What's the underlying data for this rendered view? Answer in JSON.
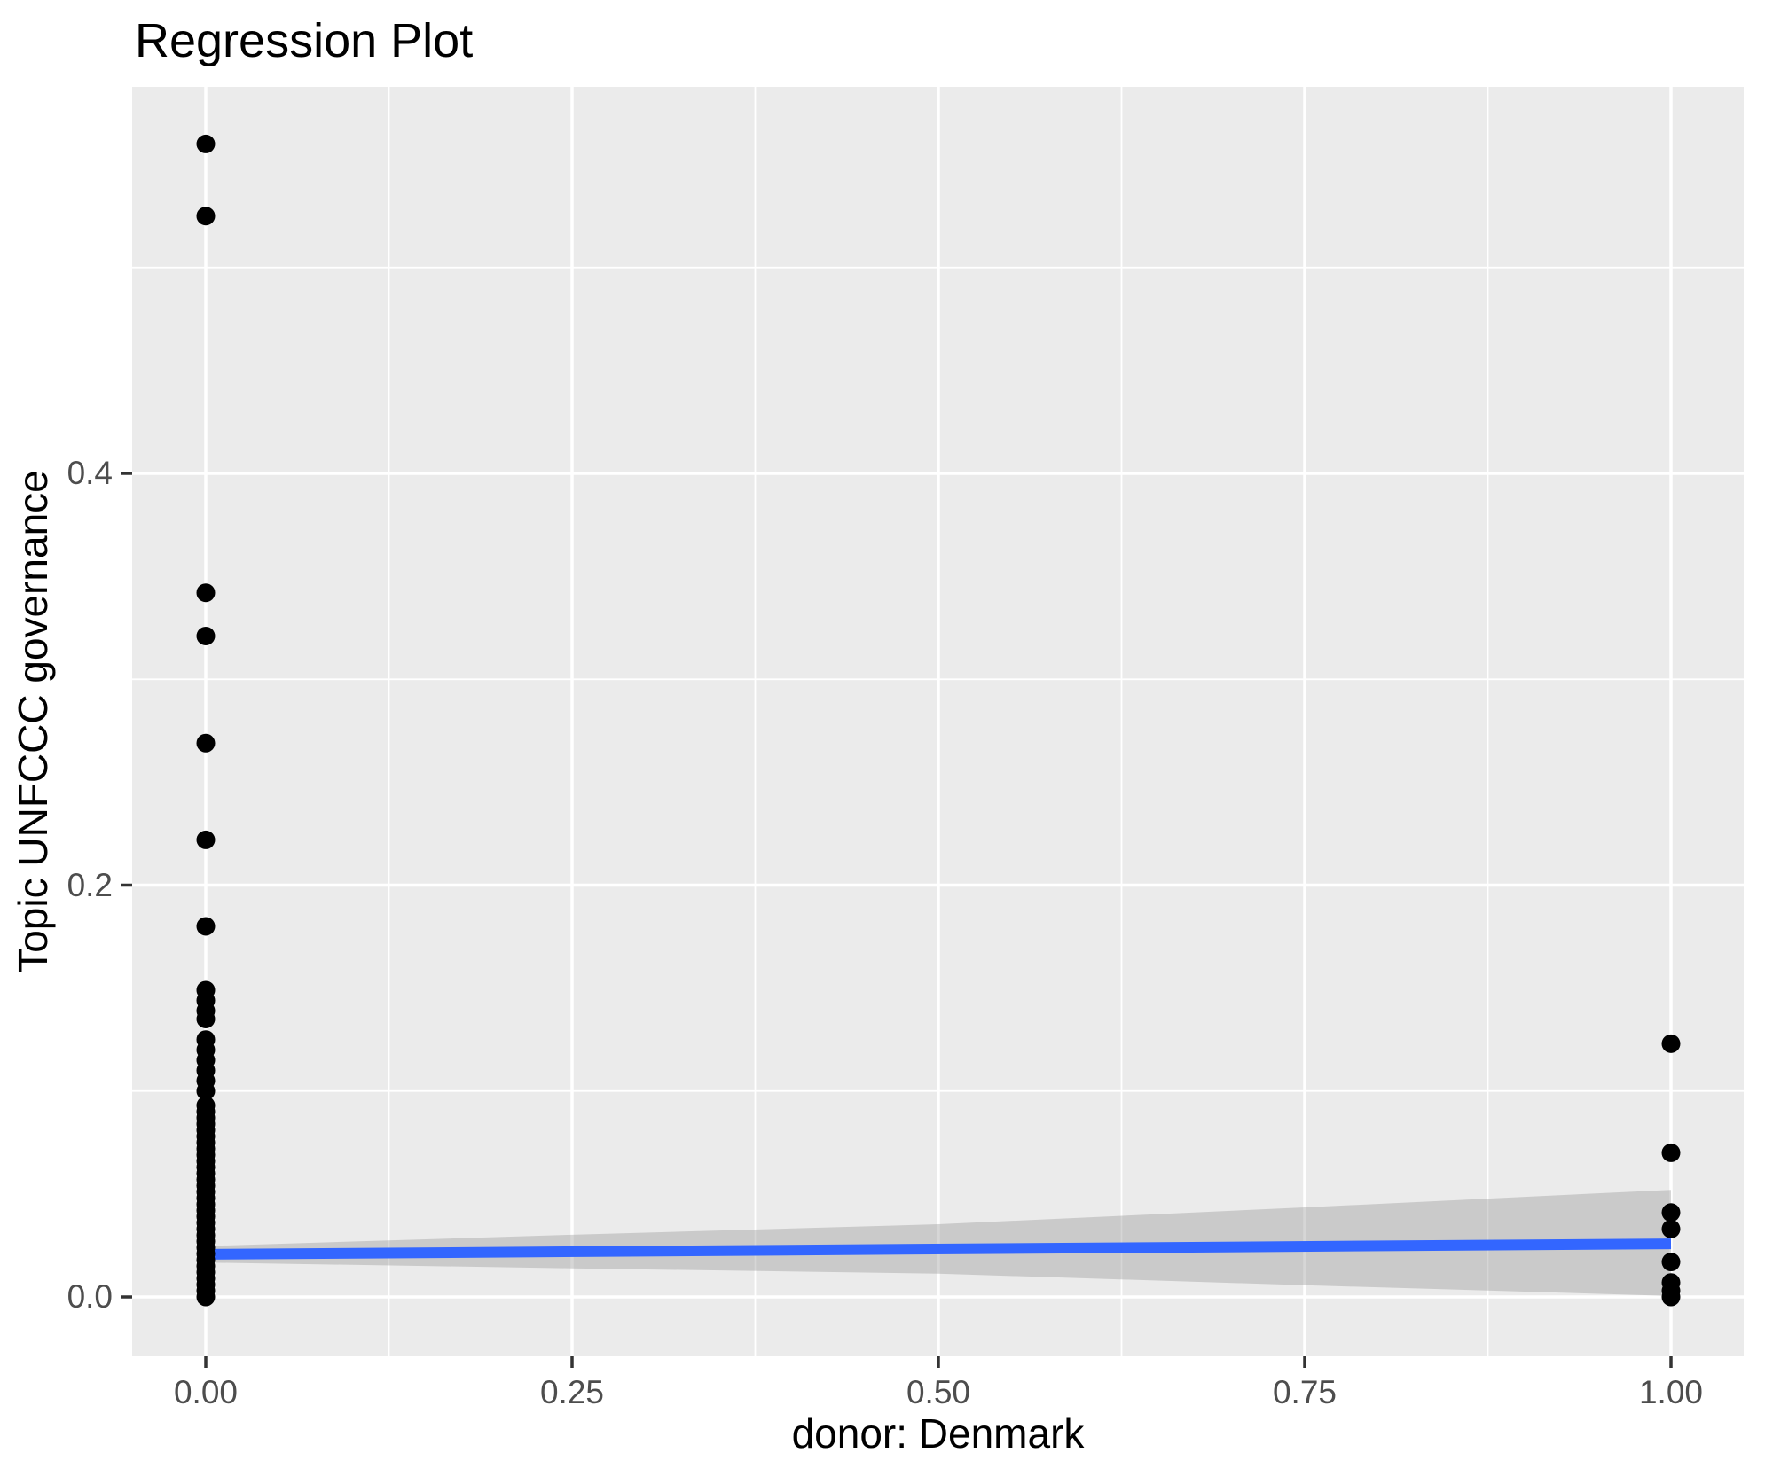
{
  "title": "Regression Plot",
  "chart_data": {
    "type": "scatter",
    "title": "Regression Plot",
    "xlabel": "donor: Denmark",
    "ylabel": "Topic UNFCCC governance",
    "xlim": [
      -0.05,
      1.05
    ],
    "ylim": [
      -0.028,
      0.588
    ],
    "grid": true,
    "legend": false,
    "x_ticks": {
      "values": [
        0,
        0.25,
        0.5,
        0.75,
        1.0
      ],
      "labels": [
        "0.00",
        "0.25",
        "0.50",
        "0.75",
        "1.00"
      ]
    },
    "y_ticks": {
      "values": [
        0,
        0.2,
        0.4
      ],
      "labels": [
        "0.0",
        "0.2",
        "0.4"
      ]
    },
    "x_minor_gridlines": [
      0.125,
      0.375,
      0.625,
      0.875
    ],
    "y_minor_gridlines": [
      0.1,
      0.3,
      0.5
    ],
    "series": [
      {
        "name": "points at donor = 0",
        "x": 0,
        "y": [
          0.56,
          0.525,
          0.342,
          0.321,
          0.269,
          0.222,
          0.18,
          0.149,
          0.144,
          0.139,
          0.135,
          0.125,
          0.12,
          0.115,
          0.11,
          0.105,
          0.1,
          0.093,
          0.09,
          0.087,
          0.084,
          0.081,
          0.078,
          0.075,
          0.072,
          0.069,
          0.066,
          0.063,
          0.06,
          0.057,
          0.054,
          0.051,
          0.048,
          0.045,
          0.042,
          0.039,
          0.036,
          0.033,
          0.03,
          0.027,
          0.024,
          0.021,
          0.018,
          0.015,
          0.012,
          0.009,
          0.006,
          0.003,
          0.0
        ]
      },
      {
        "name": "points at donor = 1",
        "x": 1,
        "y": [
          0.123,
          0.07,
          0.041,
          0.033,
          0.017,
          0.007,
          0.003,
          0.0
        ]
      }
    ],
    "regression_line": {
      "x": [
        0,
        1
      ],
      "y": [
        0.0207,
        0.0258
      ]
    },
    "confidence_band": {
      "x": [
        0,
        0.25,
        0.5,
        0.75,
        1.0
      ],
      "upper": [
        0.0247,
        0.0302,
        0.0353,
        0.0435,
        0.052
      ],
      "lower": [
        0.0167,
        0.0139,
        0.0113,
        0.0057,
        0.0005
      ]
    }
  },
  "colors": {
    "background": "#FFFFFF",
    "panel": "#EBEBEB",
    "gridline": "#FFFFFF",
    "point": "#000000",
    "regression_line": "#3366FF",
    "confidence_band": "#999999",
    "confidence_band_opacity": "0.4",
    "tick_mark": "#333333",
    "tick_label": "#4D4D4D",
    "title_text": "#000000"
  }
}
